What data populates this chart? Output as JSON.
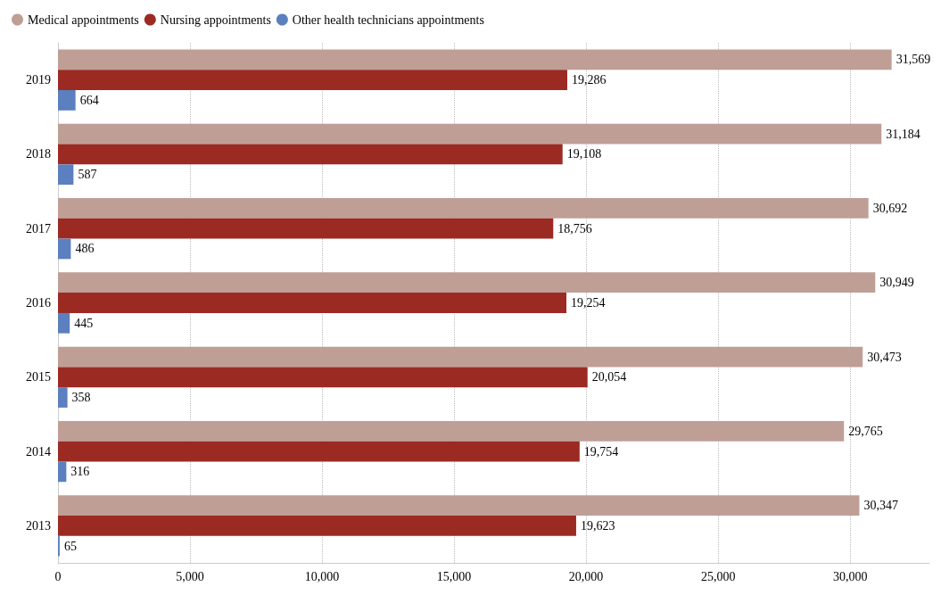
{
  "chart_data": {
    "type": "bar",
    "orientation": "horizontal",
    "categories": [
      "2019",
      "2018",
      "2017",
      "2016",
      "2015",
      "2014",
      "2013"
    ],
    "series": [
      {
        "name": "Medical appointments",
        "color": "#bf9e96",
        "values": [
          31569,
          31184,
          30692,
          30949,
          30473,
          29765,
          30347
        ],
        "value_labels": [
          "31,569",
          "31,184",
          "30,692",
          "30,949",
          "30,473",
          "29,765",
          "30,347"
        ]
      },
      {
        "name": "Nursing appointments",
        "color": "#9b2a23",
        "values": [
          19286,
          19108,
          18756,
          19254,
          20054,
          19754,
          19623
        ],
        "value_labels": [
          "19,286",
          "19,108",
          "18,756",
          "19,254",
          "20,054",
          "19,754",
          "19,623"
        ]
      },
      {
        "name": "Other health technicians appointments",
        "color": "#5b7fbf",
        "values": [
          664,
          587,
          486,
          445,
          358,
          316,
          65
        ],
        "value_labels": [
          "664",
          "587",
          "486",
          "445",
          "358",
          "316",
          "65"
        ]
      }
    ],
    "xlim": [
      0,
      33000
    ],
    "xticks": [
      0,
      {
        "value": 5000,
        "label": "5,000"
      },
      {
        "value": 10000,
        "label": "10,000"
      },
      {
        "value": 15000,
        "label": "15,000"
      },
      {
        "value": 20000,
        "label": "20,000"
      },
      {
        "value": 25000,
        "label": "25,000"
      },
      {
        "value": 30000,
        "label": "30,000"
      }
    ],
    "grid": "x",
    "legend": "top left"
  }
}
